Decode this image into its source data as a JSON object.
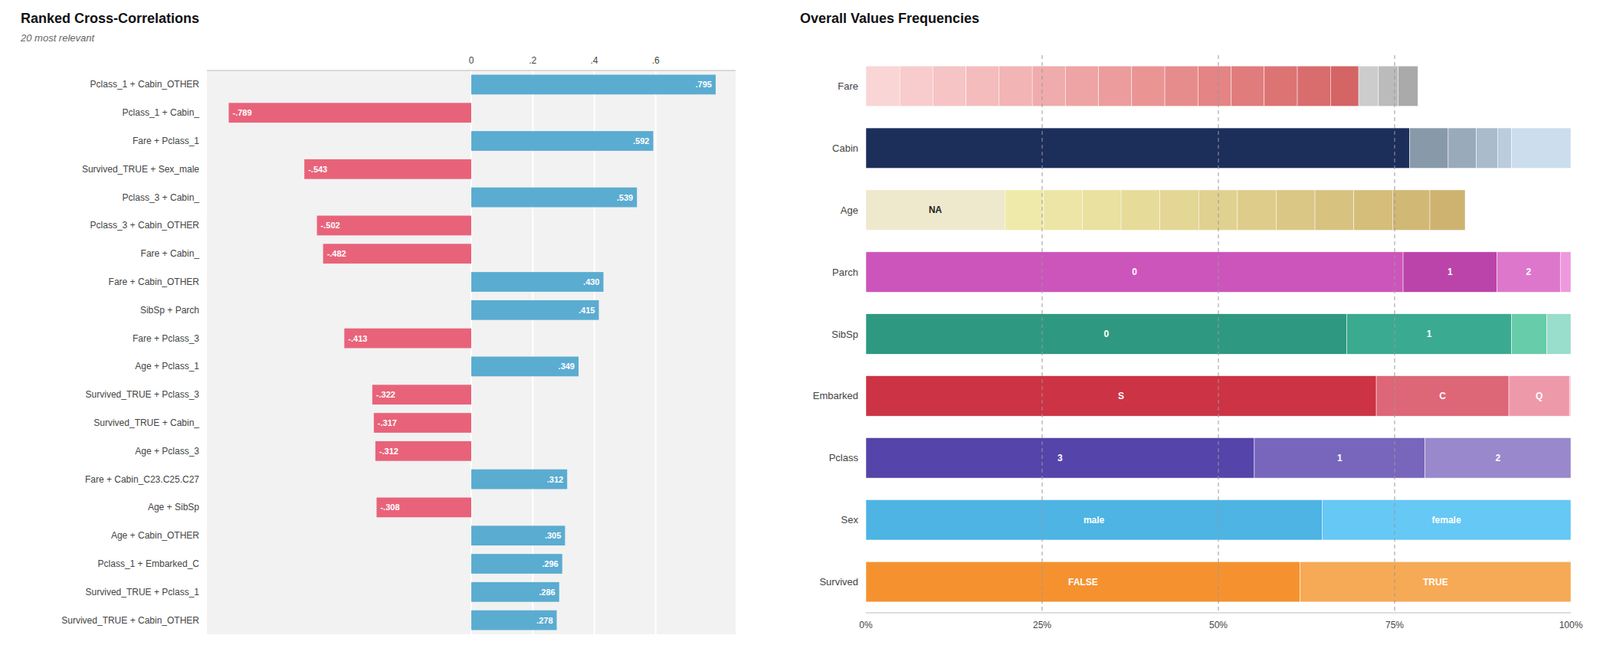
{
  "chart_data": [
    {
      "type": "bar",
      "orientation": "horizontal",
      "title": "Ranked Cross-Correlations",
      "subtitle": "20 most relevant",
      "categories": [
        "Pclass_1 + Cabin_OTHER",
        "Pclass_1 + Cabin_",
        "Fare + Pclass_1",
        "Survived_TRUE + Sex_male",
        "Pclass_3 + Cabin_",
        "Pclass_3 + Cabin_OTHER",
        "Fare + Cabin_",
        "Fare + Cabin_OTHER",
        "SibSp + Parch",
        "Fare + Pclass_3",
        "Age + Pclass_1",
        "Survived_TRUE + Pclass_3",
        "Survived_TRUE + Cabin_",
        "Age + Pclass_3",
        "Fare + Cabin_C23.C25.C27",
        "Age + SibSp",
        "Age + Cabin_OTHER",
        "Pclass_1 + Embarked_C",
        "Survived_TRUE + Pclass_1",
        "Survived_TRUE + Cabin_OTHER"
      ],
      "values": [
        0.795,
        -0.789,
        0.592,
        -0.543,
        0.539,
        -0.502,
        -0.482,
        0.43,
        0.415,
        -0.413,
        0.349,
        -0.322,
        -0.317,
        -0.312,
        0.312,
        -0.308,
        0.305,
        0.296,
        0.286,
        0.278
      ],
      "value_labels": [
        ".795",
        "-.789",
        ".592",
        "-.543",
        ".539",
        "-.502",
        "-.482",
        ".430",
        ".415",
        "-.413",
        ".349",
        "-.322",
        "-.317",
        "-.312",
        ".312",
        "-.308",
        ".305",
        ".296",
        ".286",
        ".278"
      ],
      "colors": [
        "#5BACD1",
        "#E8637A",
        "#5BACD1",
        "#E8637A",
        "#5BACD1",
        "#E8637A",
        "#E8637A",
        "#5BACD1",
        "#5BACD1",
        "#E8637A",
        "#5BACD1",
        "#E8637A",
        "#E8637A",
        "#E8637A",
        "#5BACD1",
        "#E8637A",
        "#5BACD1",
        "#5BACD1",
        "#5BACD1",
        "#5BACD1"
      ],
      "data_labels": true,
      "xlim": [
        -0.86,
        0.86
      ],
      "xticks": [
        0,
        {
          "value": 0.2,
          "label": ".2"
        },
        {
          "value": 0.4,
          "label": ".4"
        },
        {
          "value": 0.6,
          "label": ".6"
        }
      ],
      "grid": true
    },
    {
      "type": "bar",
      "orientation": "horizontal",
      "stacked": true,
      "title": "Overall Values Frequencies",
      "categories": [
        "Fare",
        "Cabin",
        "Age",
        "Parch",
        "SibSp",
        "Embarked",
        "Pclass",
        "Sex",
        "Survived"
      ],
      "series": [
        {
          "values": [
            0.048,
            0.771,
            0.197,
            0.762,
            0.682,
            0.724,
            0.551,
            0.647,
            0.616
          ],
          "colors": [
            "#FAD5D5",
            "#1C2E5A",
            "#EEE8CC",
            "#CC55BB",
            "#2E9980",
            "#CC3344",
            "#5544AA",
            "#4DB4E4",
            "#F5922F"
          ],
          "labels": [
            null,
            null,
            "NA",
            "0",
            "0",
            "S",
            "3",
            "male",
            "FALSE"
          ]
        },
        {
          "values": [
            0.047,
            0.055,
            0.055,
            0.133,
            0.234,
            0.188,
            0.242,
            0.353,
            0.384
          ],
          "colors": [
            "#F8CCCC",
            "#8899AA",
            "#F0EAAA",
            "#BB44AA",
            "#3AAA90",
            "#DD6677",
            "#7766BB",
            "#66C8F4",
            "#F7AA55"
          ],
          "labels": [
            null,
            null,
            null,
            "1",
            "1",
            "C",
            "1",
            "female",
            "TRUE"
          ]
        },
        {
          "values": [
            0.047,
            0.04,
            0.055,
            0.09,
            0.05,
            0.086,
            0.207,
            null,
            null
          ],
          "colors": [
            "#F6C4C4",
            "#99AABB",
            "#EDE5A5",
            "#DD77CC",
            "#66CCAA",
            "#EE99AA",
            "#9988CC",
            null,
            null
          ],
          "labels": [
            null,
            null,
            null,
            "2",
            null,
            "Q",
            "2",
            null,
            null
          ]
        },
        {
          "values": [
            0.047,
            0.03,
            0.055,
            0.015,
            0.034,
            0.002,
            null,
            null,
            null
          ],
          "colors": [
            "#F4BCBC",
            "#AABBCC",
            "#EAE0A0",
            "#EE99DD",
            "#99DDCC",
            "#FFBBCC",
            null,
            null,
            null
          ]
        },
        {
          "values": [
            0.047,
            0.02,
            0.055,
            null,
            null,
            null,
            null,
            null,
            null
          ],
          "colors": [
            "#F2B4B4",
            "#BBCCDD",
            "#E7DB9A",
            null,
            null,
            null,
            null,
            null,
            null
          ]
        },
        {
          "values": [
            0.047,
            0.084,
            0.055,
            null,
            null,
            null,
            null,
            null,
            null
          ],
          "colors": [
            "#F0ACAC",
            "#CCDDEE",
            "#E4D695",
            null,
            null,
            null,
            null,
            null,
            null
          ]
        },
        {
          "values": [
            0.047,
            null,
            0.055,
            null,
            null,
            null,
            null,
            null,
            null
          ],
          "colors": [
            "#EEA4A4",
            null,
            "#E1D190",
            null,
            null,
            null,
            null,
            null,
            null
          ]
        },
        {
          "values": [
            0.047,
            null,
            0.055,
            null,
            null,
            null,
            null,
            null,
            null
          ],
          "colors": [
            "#EC9C9C",
            null,
            "#DECC8A",
            null,
            null,
            null,
            null,
            null,
            null
          ]
        },
        {
          "values": [
            0.047,
            null,
            0.055,
            null,
            null,
            null,
            null,
            null,
            null
          ],
          "colors": [
            "#EA9494",
            null,
            "#DBC785",
            null,
            null,
            null,
            null,
            null,
            null
          ]
        },
        {
          "values": [
            0.047,
            null,
            0.055,
            null,
            null,
            null,
            null,
            null,
            null
          ],
          "colors": [
            "#E78C8C",
            null,
            "#D8C280",
            null,
            null,
            null,
            null,
            null,
            null
          ]
        },
        {
          "values": [
            0.047,
            null,
            0.055,
            null,
            null,
            null,
            null,
            null,
            null
          ],
          "colors": [
            "#E48484",
            null,
            "#D5BD7A",
            null,
            null,
            null,
            null,
            null,
            null
          ]
        },
        {
          "values": [
            0.047,
            null,
            0.053,
            null,
            null,
            null,
            null,
            null,
            null
          ],
          "colors": [
            "#E17C7C",
            null,
            "#D2B875",
            null,
            null,
            null,
            null,
            null,
            null
          ]
        },
        {
          "values": [
            0.047,
            null,
            0.05,
            null,
            null,
            null,
            null,
            null,
            null
          ],
          "colors": [
            "#DD7474",
            null,
            "#CEB370",
            null,
            null,
            null,
            null,
            null,
            null
          ]
        },
        {
          "values": [
            0.047,
            null,
            null,
            null,
            null,
            null,
            null,
            null,
            null
          ],
          "colors": [
            "#D96C6C",
            null,
            null,
            null,
            null,
            null,
            null,
            null,
            null
          ]
        },
        {
          "values": [
            0.04,
            null,
            null,
            null,
            null,
            null,
            null,
            null,
            null
          ],
          "colors": [
            "#D56464",
            null,
            null,
            null,
            null,
            null,
            null,
            null,
            null
          ]
        },
        {
          "values": [
            0.028,
            null,
            null,
            null,
            null,
            null,
            null,
            null,
            null
          ],
          "colors": [
            "#CCCCCC",
            null,
            null,
            null,
            null,
            null,
            null,
            null,
            null
          ]
        },
        {
          "values": [
            0.028,
            null,
            null,
            null,
            null,
            null,
            null,
            null,
            null
          ],
          "colors": [
            "#BBBBBB",
            null,
            null,
            null,
            null,
            null,
            null,
            null,
            null
          ]
        },
        {
          "values": [
            0.028,
            null,
            null,
            null,
            null,
            null,
            null,
            null,
            null
          ],
          "colors": [
            "#AAAAAA",
            null,
            null,
            null,
            null,
            null,
            null,
            null,
            null
          ]
        }
      ],
      "xlim": [
        0.0,
        1.0
      ],
      "xticks": [
        {
          "value": 0.0,
          "label": "0%"
        },
        {
          "value": 0.25,
          "label": "25%"
        },
        {
          "value": 0.5,
          "label": "50%"
        },
        {
          "value": 0.75,
          "label": "75%"
        },
        {
          "value": 1.0,
          "label": "100%"
        }
      ],
      "grid": true
    }
  ]
}
